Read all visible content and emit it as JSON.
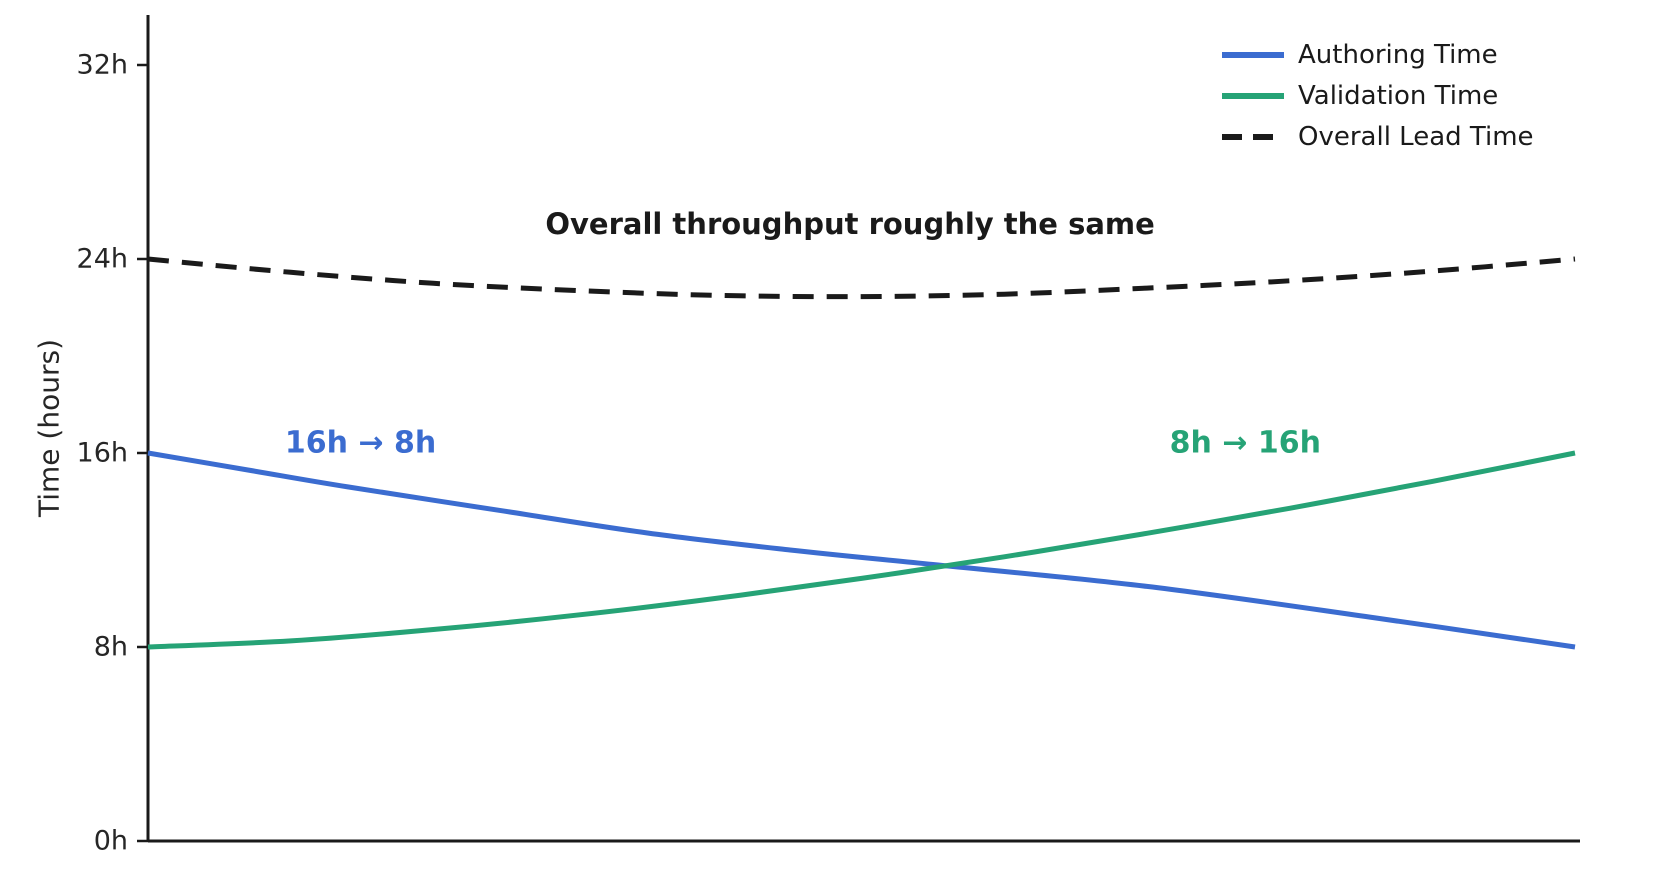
{
  "chart_data": {
    "type": "line",
    "title": "",
    "xlabel": "",
    "ylabel": "Time (hours)",
    "ylim": [
      0,
      34
    ],
    "x_range": [
      0,
      1
    ],
    "x_ticks": [],
    "grid": false,
    "background_color": "#ffffff",
    "axis_color": "#1a1a1a",
    "tick_label_color": "#262626",
    "legend_position": "upper right",
    "legend_frame": false,
    "yticks": [
      {
        "value": 0,
        "label": "0h"
      },
      {
        "value": 8,
        "label": "8h"
      },
      {
        "value": 16,
        "label": "16h"
      },
      {
        "value": 24,
        "label": "24h"
      },
      {
        "value": 32,
        "label": "32h"
      }
    ],
    "series": [
      {
        "name": "Authoring Time",
        "color": "#3b6cd0",
        "dashed": false,
        "start_value_hours": 16,
        "end_value_hours": 8,
        "x": [
          0,
          0.07,
          0.14,
          0.25,
          0.35,
          0.45,
          0.55,
          0.7,
          0.86,
          1
        ],
        "y": [
          16,
          15.3,
          14.6,
          13.6,
          12.7,
          12.0,
          11.4,
          10.5,
          9.2,
          8.0
        ]
      },
      {
        "name": "Validation Time",
        "color": "#26a376",
        "dashed": false,
        "start_value_hours": 8,
        "end_value_hours": 16,
        "x": [
          0,
          0.1,
          0.2,
          0.3,
          0.4,
          0.5,
          0.6,
          0.7,
          0.8,
          0.9,
          1
        ],
        "y": [
          8,
          8.25,
          8.72,
          9.31,
          10.02,
          10.83,
          11.72,
          12.69,
          13.72,
          14.83,
          16
        ]
      },
      {
        "name": "Overall Lead Time",
        "color": "#1a1a1a",
        "dashed": true,
        "start_value_hours": 24,
        "end_value_hours": 24,
        "x": [
          0,
          0.1,
          0.2,
          0.3,
          0.4,
          0.5,
          0.6,
          0.7,
          0.8,
          0.9,
          1
        ],
        "y": [
          24,
          23.45,
          23.0,
          22.7,
          22.5,
          22.45,
          22.55,
          22.8,
          23.1,
          23.5,
          24
        ]
      }
    ],
    "annotations": [
      {
        "text": "Overall throughput roughly the same",
        "color": "#1a1a1a",
        "x": 0.492,
        "y": 25.44,
        "bold": true,
        "font_px": 29
      },
      {
        "text": "16h → 8h",
        "color": "#3b6cd0",
        "x": 0.149,
        "y": 16.41,
        "bold": true,
        "font_px": 30
      },
      {
        "text": "8h → 16h",
        "color": "#26a376",
        "x": 0.769,
        "y": 16.41,
        "bold": true,
        "font_px": 30
      }
    ]
  }
}
